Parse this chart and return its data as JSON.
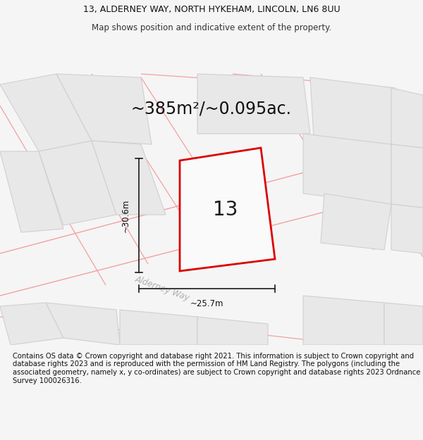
{
  "title_line1": "13, ALDERNEY WAY, NORTH HYKEHAM, LINCOLN, LN6 8UU",
  "title_line2": "Map shows position and indicative extent of the property.",
  "area_label": "~385m²/~0.095ac.",
  "plot_number": "13",
  "dim_height": "~30.6m",
  "dim_width": "~25.7m",
  "street_label": "Alderney Way",
  "footer_text": "Contains OS data © Crown copyright and database right 2021. This information is subject to Crown copyright and database rights 2023 and is reproduced with the permission of HM Land Registry. The polygons (including the associated geometry, namely x, y co-ordinates) are subject to Crown copyright and database rights 2023 Ordnance Survey 100026316.",
  "bg_color": "#f5f5f5",
  "map_bg": "#ffffff",
  "building_fill": "#e8e8e8",
  "building_edge": "#d0d0d0",
  "road_line_color": "#f4a0a0",
  "plot_edge_color": "#dd0000",
  "dim_line_color": "#1a1a1a",
  "title_fontsize": 9,
  "subtitle_fontsize": 8.5,
  "area_fontsize": 17,
  "plot_num_fontsize": 20,
  "footer_fontsize": 7.2
}
